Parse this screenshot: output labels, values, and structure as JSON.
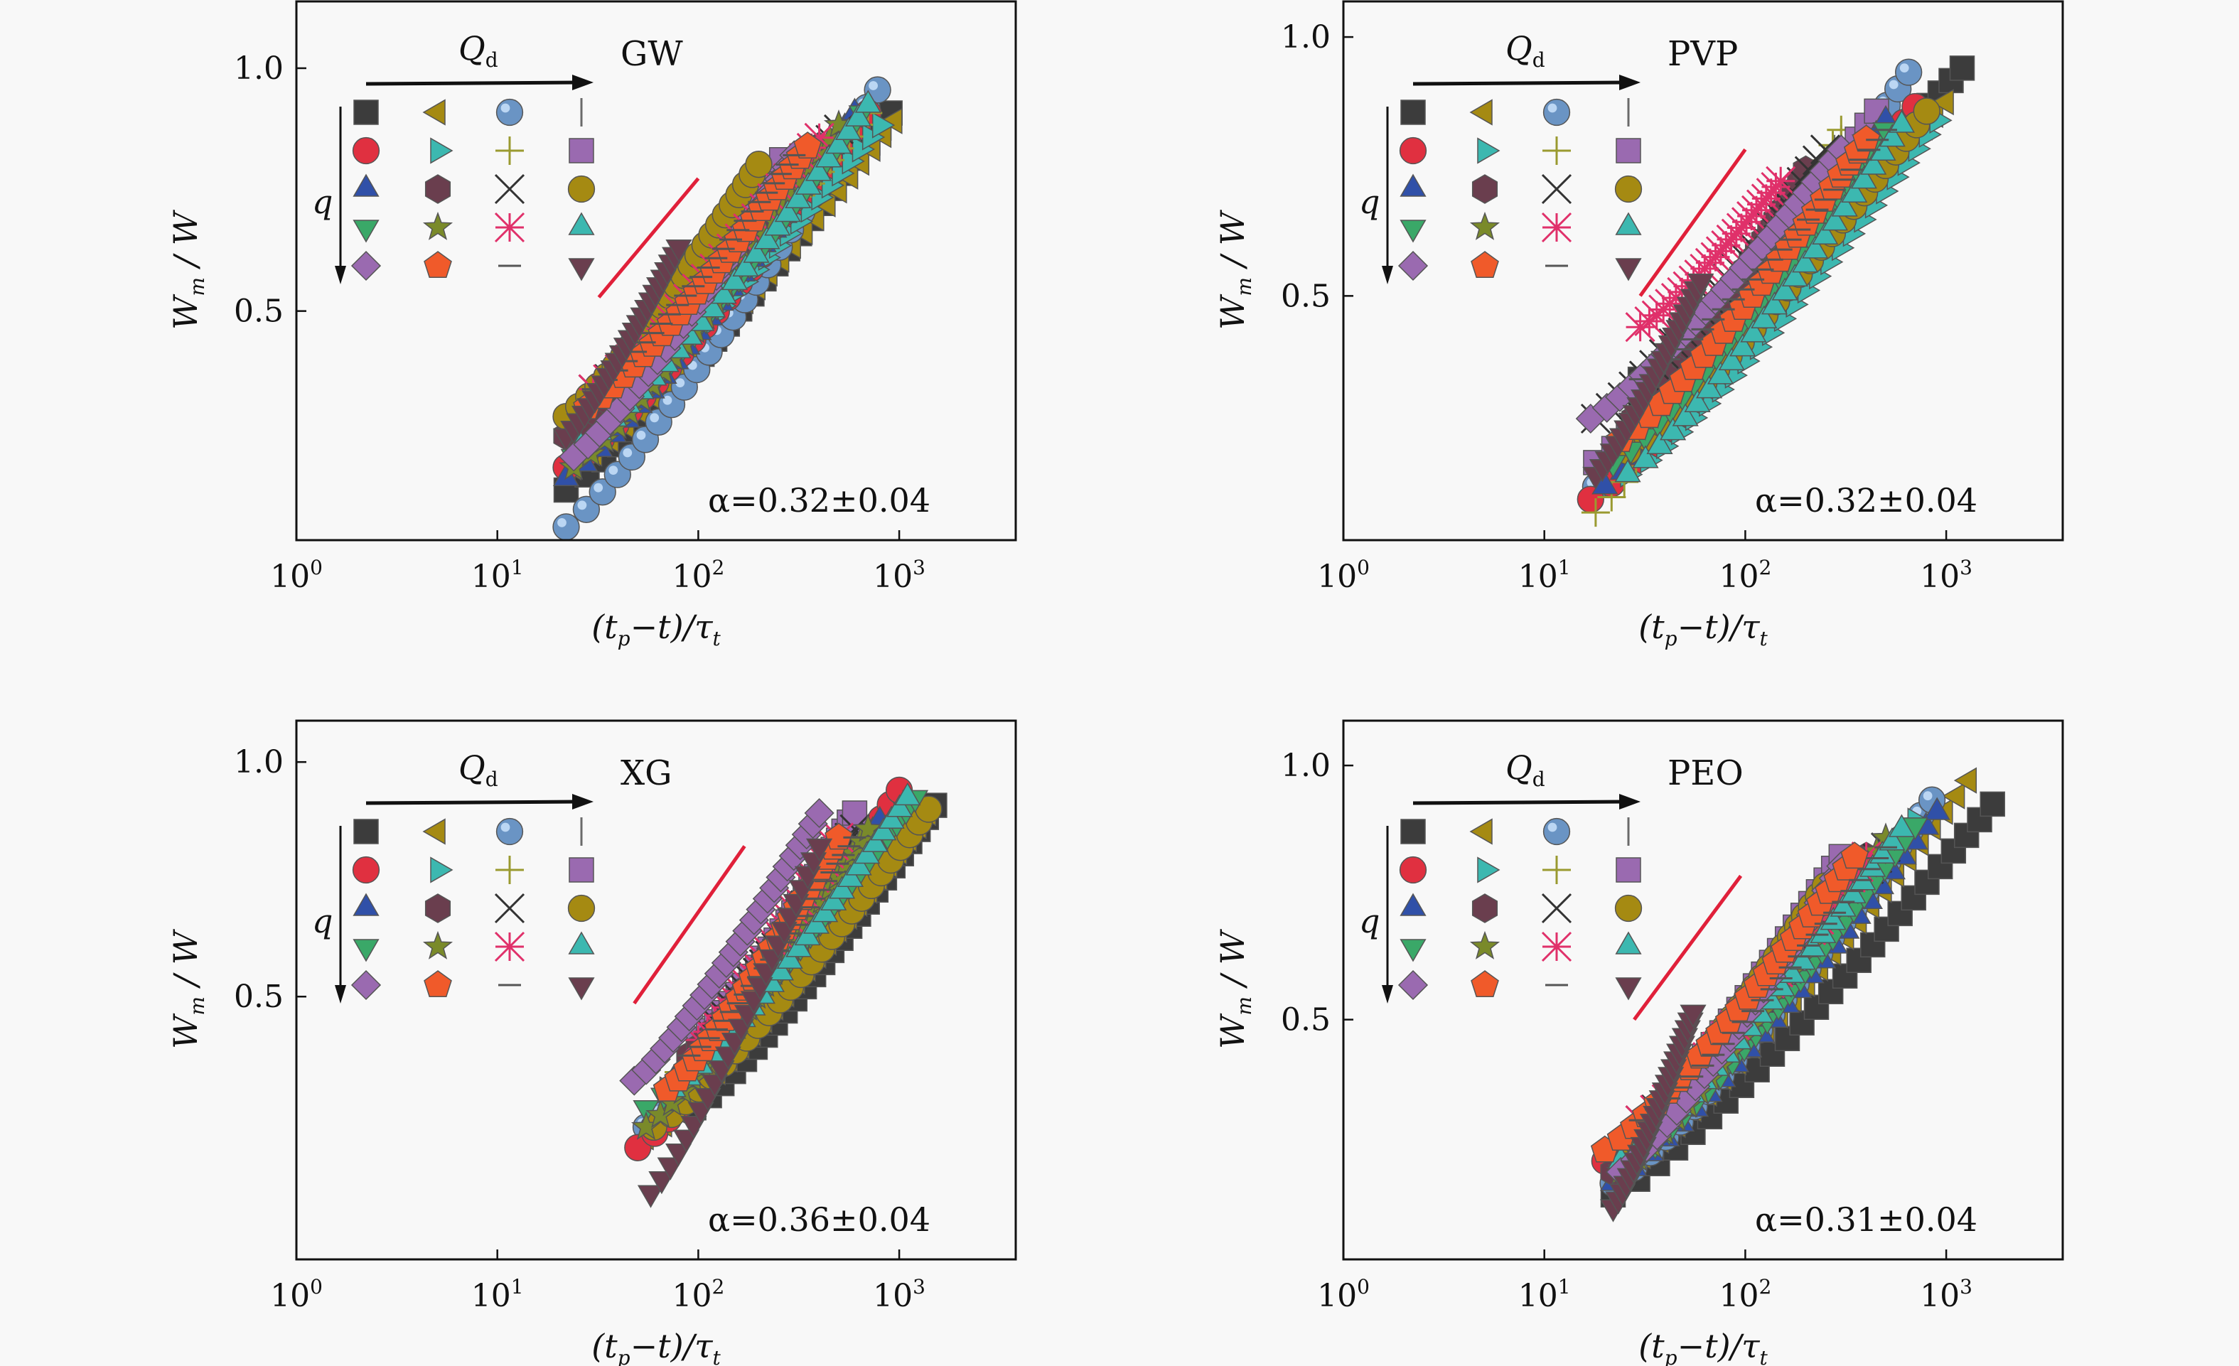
{
  "figure": {
    "title": "",
    "colors": {
      "background": "#f8f8f8",
      "axis": "#111111",
      "fit_line": "#e0203a"
    }
  },
  "legend": {
    "row_arrow_label": "Q_d",
    "column_arrow_label": "q",
    "markers": [
      {
        "shape": "square",
        "color": "#3c3c3c"
      },
      {
        "shape": "triangle-left",
        "color": "#a58a12"
      },
      {
        "shape": "sphere",
        "color": "#6a94c4"
      },
      {
        "shape": "vline",
        "color": "#6a6a6a"
      },
      {
        "shape": "circle",
        "color": "#e03040"
      },
      {
        "shape": "triangle-right",
        "color": "#3cb8b0"
      },
      {
        "shape": "plus",
        "color": "#9a9a30"
      },
      {
        "shape": "square",
        "color": "#9a6ab0"
      },
      {
        "shape": "triangle-up",
        "color": "#3050a8"
      },
      {
        "shape": "hexagon",
        "color": "#6a3e4e"
      },
      {
        "shape": "x",
        "color": "#333333"
      },
      {
        "shape": "circle",
        "color": "#a58a12"
      },
      {
        "shape": "triangle-down",
        "color": "#3aa868"
      },
      {
        "shape": "star",
        "color": "#7a8a2a"
      },
      {
        "shape": "asterisk",
        "color": "#e0306a"
      },
      {
        "shape": "triangle-up",
        "color": "#3cb8b0"
      },
      {
        "shape": "diamond",
        "color": "#9a6ab0"
      },
      {
        "shape": "pentagon",
        "color": "#f05a2a"
      },
      {
        "shape": "hline",
        "color": "#555555"
      },
      {
        "shape": "triangle-down",
        "color": "#6a3e4e"
      }
    ]
  },
  "chart_data": [
    {
      "type": "scatter",
      "panel": "GW",
      "title": "GW",
      "xlabel": "(t_p - t)/τ_t",
      "ylabel": "W_m / W",
      "xscale": "log",
      "yscale": "log",
      "xlim": [
        1,
        3800
      ],
      "ylim": [
        0.26,
        1.21
      ],
      "xticks": [
        1,
        10,
        100,
        1000
      ],
      "xtick_labels": [
        "10^0",
        "10^1",
        "10^2",
        "10^3"
      ],
      "yticks": [
        0.5,
        1.0
      ],
      "ytick_labels": [
        "0.5",
        "1.0"
      ],
      "annotation": "α=0.32±0.04",
      "fit_line": {
        "slope": 0.32,
        "x": [
          32,
          100
        ],
        "y": [
          0.52,
          0.73
        ]
      },
      "series_ranges": [
        {
          "x": [
            22,
            900
          ],
          "y": [
            0.3,
            0.88
          ]
        },
        {
          "x": [
            24,
            950
          ],
          "y": [
            0.32,
            0.86
          ]
        },
        {
          "x": [
            22,
            780
          ],
          "y": [
            0.27,
            0.94
          ]
        },
        {
          "x": [
            25,
            600
          ],
          "y": [
            0.34,
            0.86
          ]
        },
        {
          "x": [
            22,
            700
          ],
          "y": [
            0.32,
            0.88
          ]
        },
        {
          "x": [
            28,
            800
          ],
          "y": [
            0.36,
            0.85
          ]
        },
        {
          "x": [
            30,
            700
          ],
          "y": [
            0.38,
            0.88
          ]
        },
        {
          "x": [
            26,
            260
          ],
          "y": [
            0.36,
            0.77
          ]
        },
        {
          "x": [
            22,
            600
          ],
          "y": [
            0.31,
            0.88
          ]
        },
        {
          "x": [
            22,
            400
          ],
          "y": [
            0.35,
            0.8
          ]
        },
        {
          "x": [
            30,
            500
          ],
          "y": [
            0.4,
            0.84
          ]
        },
        {
          "x": [
            22,
            200
          ],
          "y": [
            0.37,
            0.76
          ]
        },
        {
          "x": [
            24,
            650
          ],
          "y": [
            0.33,
            0.88
          ]
        },
        {
          "x": [
            24,
            500
          ],
          "y": [
            0.32,
            0.85
          ]
        },
        {
          "x": [
            30,
            400
          ],
          "y": [
            0.4,
            0.82
          ]
        },
        {
          "x": [
            26,
            700
          ],
          "y": [
            0.34,
            0.9
          ]
        },
        {
          "x": [
            24,
            300
          ],
          "y": [
            0.33,
            0.78
          ]
        },
        {
          "x": [
            28,
            350
          ],
          "y": [
            0.38,
            0.8
          ]
        },
        {
          "x": [
            30,
            300
          ],
          "y": [
            0.4,
            0.78
          ]
        },
        {
          "x": [
            22,
            80
          ],
          "y": [
            0.35,
            0.6
          ]
        }
      ]
    },
    {
      "type": "scatter",
      "panel": "PVP",
      "title": "PVP",
      "xlabel": "(t_p - t)/τ_t",
      "ylabel": "W_m / W",
      "xscale": "log",
      "yscale": "log",
      "xlim": [
        1,
        3800
      ],
      "ylim": [
        0.26,
        1.1
      ],
      "xticks": [
        1,
        10,
        100,
        1000
      ],
      "xtick_labels": [
        "10^0",
        "10^1",
        "10^2",
        "10^3"
      ],
      "yticks": [
        0.5,
        1.0
      ],
      "ytick_labels": [
        "0.5",
        "1.0"
      ],
      "annotation": "α=0.32±0.04",
      "fit_line": {
        "slope": 0.32,
        "x": [
          30,
          100
        ],
        "y": [
          0.5,
          0.74
        ]
      },
      "series_ranges": [
        {
          "x": [
            30,
            1200
          ],
          "y": [
            0.4,
            0.92
          ]
        },
        {
          "x": [
            28,
            1000
          ],
          "y": [
            0.36,
            0.84
          ]
        },
        {
          "x": [
            18,
            650
          ],
          "y": [
            0.3,
            0.91
          ]
        },
        {
          "x": [
            30,
            300
          ],
          "y": [
            0.4,
            0.76
          ]
        },
        {
          "x": [
            17,
            700
          ],
          "y": [
            0.29,
            0.83
          ]
        },
        {
          "x": [
            26,
            900
          ],
          "y": [
            0.31,
            0.8
          ]
        },
        {
          "x": [
            18,
            300
          ],
          "y": [
            0.28,
            0.78
          ]
        },
        {
          "x": [
            18,
            450
          ],
          "y": [
            0.32,
            0.82
          ]
        },
        {
          "x": [
            20,
            500
          ],
          "y": [
            0.3,
            0.8
          ]
        },
        {
          "x": [
            28,
            200
          ],
          "y": [
            0.36,
            0.7
          ]
        },
        {
          "x": [
            18,
            250
          ],
          "y": [
            0.36,
            0.74
          ]
        },
        {
          "x": [
            26,
            800
          ],
          "y": [
            0.33,
            0.82
          ]
        },
        {
          "x": [
            22,
            500
          ],
          "y": [
            0.32,
            0.78
          ]
        },
        {
          "x": [
            24,
            400
          ],
          "y": [
            0.34,
            0.76
          ]
        },
        {
          "x": [
            30,
            150
          ],
          "y": [
            0.46,
            0.68
          ]
        },
        {
          "x": [
            26,
            600
          ],
          "y": [
            0.31,
            0.79
          ]
        },
        {
          "x": [
            17,
            300
          ],
          "y": [
            0.36,
            0.74
          ]
        },
        {
          "x": [
            24,
            400
          ],
          "y": [
            0.34,
            0.76
          ]
        },
        {
          "x": [
            30,
            500
          ],
          "y": [
            0.4,
            0.78
          ]
        },
        {
          "x": [
            18,
            60
          ],
          "y": [
            0.31,
            0.52
          ]
        }
      ]
    },
    {
      "type": "scatter",
      "panel": "XG",
      "title": "XG",
      "xlabel": "(t_p - t)/τ_t",
      "ylabel": "W_m / W",
      "xscale": "log",
      "yscale": "log",
      "xlim": [
        1,
        3800
      ],
      "ylim": [
        0.23,
        1.13
      ],
      "xticks": [
        1,
        10,
        100,
        1000
      ],
      "xtick_labels": [
        "10^0",
        "10^1",
        "10^2",
        "10^3"
      ],
      "yticks": [
        0.5,
        1.0
      ],
      "ytick_labels": [
        "0.5",
        "1.0"
      ],
      "annotation": "α=0.36±0.04",
      "fit_line": {
        "slope": 0.36,
        "x": [
          48,
          170
        ],
        "y": [
          0.49,
          0.78
        ]
      },
      "series_ranges": [
        {
          "x": [
            95,
            1500
          ],
          "y": [
            0.36,
            0.88
          ]
        },
        {
          "x": [
            55,
            1400
          ],
          "y": [
            0.33,
            0.86
          ]
        },
        {
          "x": [
            55,
            900
          ],
          "y": [
            0.34,
            0.84
          ]
        },
        {
          "x": [
            90,
            900
          ],
          "y": [
            0.4,
            0.84
          ]
        },
        {
          "x": [
            50,
            1000
          ],
          "y": [
            0.32,
            0.92
          ]
        },
        {
          "x": [
            70,
            1200
          ],
          "y": [
            0.38,
            0.88
          ]
        },
        {
          "x": [
            80,
            700
          ],
          "y": [
            0.4,
            0.8
          ]
        },
        {
          "x": [
            100,
            600
          ],
          "y": [
            0.44,
            0.86
          ]
        },
        {
          "x": [
            75,
            800
          ],
          "y": [
            0.39,
            0.84
          ]
        },
        {
          "x": [
            90,
            500
          ],
          "y": [
            0.42,
            0.78
          ]
        },
        {
          "x": [
            100,
            600
          ],
          "y": [
            0.44,
            0.82
          ]
        },
        {
          "x": [
            60,
            1400
          ],
          "y": [
            0.34,
            0.87
          ]
        },
        {
          "x": [
            55,
            1200
          ],
          "y": [
            0.36,
            0.9
          ]
        },
        {
          "x": [
            55,
            700
          ],
          "y": [
            0.34,
            0.82
          ]
        },
        {
          "x": [
            100,
            500
          ],
          "y": [
            0.44,
            0.8
          ]
        },
        {
          "x": [
            75,
            1100
          ],
          "y": [
            0.38,
            0.9
          ]
        },
        {
          "x": [
            48,
            400
          ],
          "y": [
            0.39,
            0.86
          ]
        },
        {
          "x": [
            70,
            500
          ],
          "y": [
            0.38,
            0.8
          ]
        },
        {
          "x": [
            90,
            600
          ],
          "y": [
            0.42,
            0.8
          ]
        },
        {
          "x": [
            58,
            400
          ],
          "y": [
            0.28,
            0.78
          ]
        }
      ]
    },
    {
      "type": "scatter",
      "panel": "PEO",
      "title": "PEO",
      "xlabel": "(t_p - t)/τ_t",
      "ylabel": "W_m / W",
      "xscale": "log",
      "yscale": "log",
      "xlim": [
        1,
        3800
      ],
      "ylim": [
        0.26,
        1.13
      ],
      "xticks": [
        1,
        10,
        100,
        1000
      ],
      "xtick_labels": [
        "10^0",
        "10^1",
        "10^2",
        "10^3"
      ],
      "yticks": [
        0.5,
        1.0
      ],
      "ytick_labels": [
        "0.5",
        "1.0"
      ],
      "annotation": "α=0.31±0.04",
      "fit_line": {
        "slope": 0.31,
        "x": [
          28,
          95
        ],
        "y": [
          0.5,
          0.74
        ]
      },
      "series_ranges": [
        {
          "x": [
            22,
            1700
          ],
          "y": [
            0.31,
            0.9
          ]
        },
        {
          "x": [
            24,
            1300
          ],
          "y": [
            0.33,
            0.96
          ]
        },
        {
          "x": [
            22,
            850
          ],
          "y": [
            0.32,
            0.91
          ]
        },
        {
          "x": [
            40,
            300
          ],
          "y": [
            0.42,
            0.74
          ]
        },
        {
          "x": [
            20,
            600
          ],
          "y": [
            0.34,
            0.82
          ]
        },
        {
          "x": [
            22,
            700
          ],
          "y": [
            0.33,
            0.86
          ]
        },
        {
          "x": [
            28,
            400
          ],
          "y": [
            0.36,
            0.78
          ]
        },
        {
          "x": [
            24,
            300
          ],
          "y": [
            0.35,
            0.78
          ]
        },
        {
          "x": [
            22,
            900
          ],
          "y": [
            0.32,
            0.88
          ]
        },
        {
          "x": [
            22,
            400
          ],
          "y": [
            0.33,
            0.78
          ]
        },
        {
          "x": [
            30,
            500
          ],
          "y": [
            0.38,
            0.8
          ]
        },
        {
          "x": [
            25,
            250
          ],
          "y": [
            0.36,
            0.72
          ]
        },
        {
          "x": [
            24,
            700
          ],
          "y": [
            0.33,
            0.85
          ]
        },
        {
          "x": [
            24,
            500
          ],
          "y": [
            0.33,
            0.82
          ]
        },
        {
          "x": [
            30,
            400
          ],
          "y": [
            0.38,
            0.78
          ]
        },
        {
          "x": [
            24,
            600
          ],
          "y": [
            0.34,
            0.84
          ]
        },
        {
          "x": [
            24,
            300
          ],
          "y": [
            0.33,
            0.76
          ]
        },
        {
          "x": [
            20,
            350
          ],
          "y": [
            0.35,
            0.78
          ]
        },
        {
          "x": [
            30,
            500
          ],
          "y": [
            0.38,
            0.8
          ]
        },
        {
          "x": [
            22,
            55
          ],
          "y": [
            0.3,
            0.51
          ]
        }
      ]
    }
  ]
}
